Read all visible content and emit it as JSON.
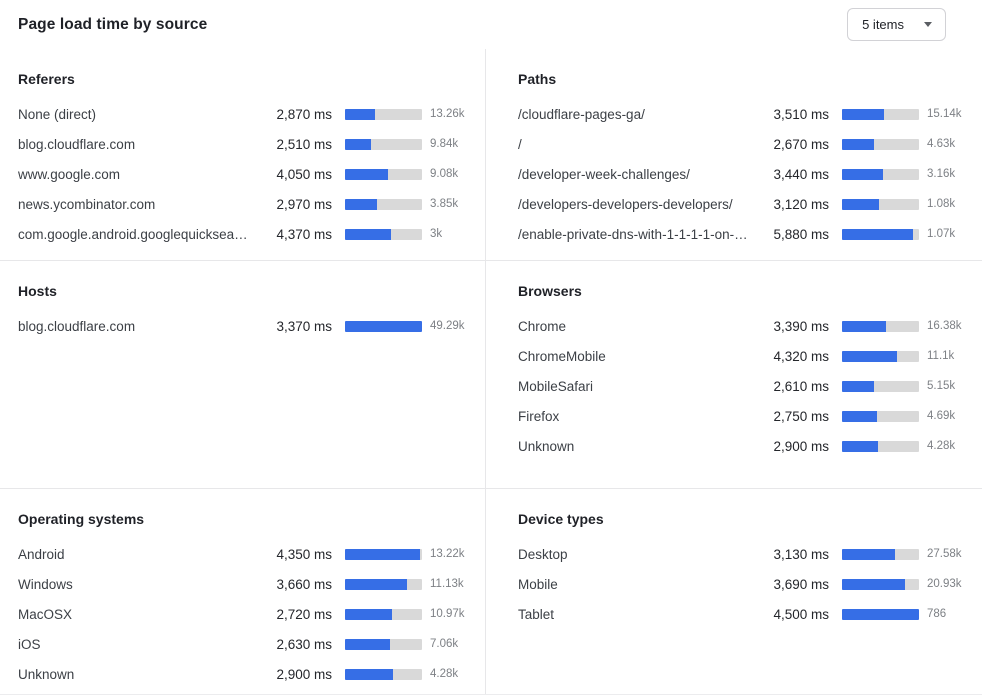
{
  "header": {
    "title": "Page load time by source",
    "items_select": {
      "label": "5 items"
    }
  },
  "colors": {
    "bar_fill": "#366ee6",
    "bar_track": "#d9d9d9",
    "divider": "#e7e7e9",
    "heading_text": "#1f2127",
    "label_text": "#3c4046",
    "count_text": "#7d8085",
    "background": "#ffffff"
  },
  "chart_data": {
    "type": "table",
    "title": "Page load time by source",
    "value_unit": "ms",
    "legend_position": "none",
    "panels": [
      {
        "title": "Referers",
        "rows": [
          {
            "label": "None (direct)",
            "value": "2,870 ms",
            "ms": 2870,
            "count": "13.26k",
            "bar_pct": 39
          },
          {
            "label": "blog.cloudflare.com",
            "value": "2,510 ms",
            "ms": 2510,
            "count": "9.84k",
            "bar_pct": 34
          },
          {
            "label": "www.google.com",
            "value": "4,050 ms",
            "ms": 4050,
            "count": "9.08k",
            "bar_pct": 56
          },
          {
            "label": "news.ycombinator.com",
            "value": "2,970 ms",
            "ms": 2970,
            "count": "3.85k",
            "bar_pct": 41
          },
          {
            "label": "com.google.android.googlequicksearc…",
            "value": "4,370 ms",
            "ms": 4370,
            "count": "3k",
            "bar_pct": 60
          }
        ]
      },
      {
        "title": "Paths",
        "rows": [
          {
            "label": "/cloudflare-pages-ga/",
            "value": "3,510 ms",
            "ms": 3510,
            "count": "15.14k",
            "bar_pct": 55
          },
          {
            "label": "/",
            "value": "2,670 ms",
            "ms": 2670,
            "count": "4.63k",
            "bar_pct": 41
          },
          {
            "label": "/developer-week-challenges/",
            "value": "3,440 ms",
            "ms": 3440,
            "count": "3.16k",
            "bar_pct": 53
          },
          {
            "label": "/developers-developers-developers/",
            "value": "3,120 ms",
            "ms": 3120,
            "count": "1.08k",
            "bar_pct": 48
          },
          {
            "label": "/enable-private-dns-with-1-1-1-1-on-…",
            "value": "5,880 ms",
            "ms": 5880,
            "count": "1.07k",
            "bar_pct": 92
          }
        ]
      },
      {
        "title": "Hosts",
        "rows": [
          {
            "label": "blog.cloudflare.com",
            "value": "3,370 ms",
            "ms": 3370,
            "count": "49.29k",
            "bar_pct": 100
          }
        ]
      },
      {
        "title": "Browsers",
        "rows": [
          {
            "label": "Chrome",
            "value": "3,390 ms",
            "ms": 3390,
            "count": "16.38k",
            "bar_pct": 57
          },
          {
            "label": "ChromeMobile",
            "value": "4,320 ms",
            "ms": 4320,
            "count": "11.1k",
            "bar_pct": 72
          },
          {
            "label": "MobileSafari",
            "value": "2,610 ms",
            "ms": 2610,
            "count": "5.15k",
            "bar_pct": 42
          },
          {
            "label": "Firefox",
            "value": "2,750 ms",
            "ms": 2750,
            "count": "4.69k",
            "bar_pct": 45
          },
          {
            "label": "Unknown",
            "value": "2,900 ms",
            "ms": 2900,
            "count": "4.28k",
            "bar_pct": 47
          }
        ]
      },
      {
        "title": "Operating systems",
        "rows": [
          {
            "label": "Android",
            "value": "4,350 ms",
            "ms": 4350,
            "count": "13.22k",
            "bar_pct": 97
          },
          {
            "label": "Windows",
            "value": "3,660 ms",
            "ms": 3660,
            "count": "11.13k",
            "bar_pct": 81
          },
          {
            "label": "MacOSX",
            "value": "2,720 ms",
            "ms": 2720,
            "count": "10.97k",
            "bar_pct": 61
          },
          {
            "label": "iOS",
            "value": "2,630 ms",
            "ms": 2630,
            "count": "7.06k",
            "bar_pct": 58
          },
          {
            "label": "Unknown",
            "value": "2,900 ms",
            "ms": 2900,
            "count": "4.28k",
            "bar_pct": 62
          }
        ]
      },
      {
        "title": "Device types",
        "rows": [
          {
            "label": "Desktop",
            "value": "3,130 ms",
            "ms": 3130,
            "count": "27.58k",
            "bar_pct": 69
          },
          {
            "label": "Mobile",
            "value": "3,690 ms",
            "ms": 3690,
            "count": "20.93k",
            "bar_pct": 82
          },
          {
            "label": "Tablet",
            "value": "4,500 ms",
            "ms": 4500,
            "count": "786",
            "bar_pct": 100
          }
        ]
      }
    ]
  }
}
